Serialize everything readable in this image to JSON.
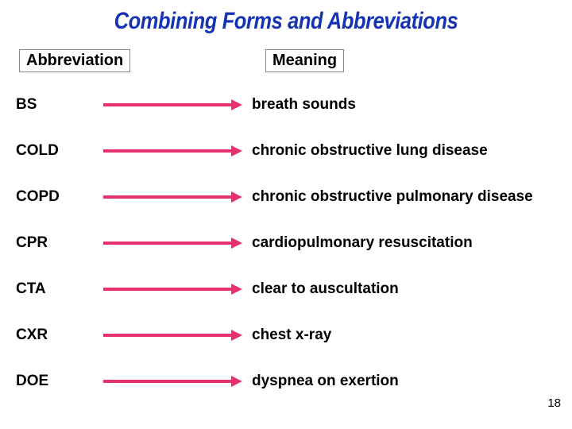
{
  "title": {
    "text": "Combining Forms and Abbreviations",
    "color": "#1533b3",
    "fontsize": 30
  },
  "headers": {
    "left": "Abbreviation",
    "right": "Meaning",
    "fontsize": 20,
    "color": "#000000"
  },
  "arrow": {
    "color": "#e6316e",
    "thickness": 4
  },
  "body_fontsize": 19,
  "rows": [
    {
      "abbrev": "BS",
      "meaning": "breath sounds"
    },
    {
      "abbrev": "COLD",
      "meaning": "chronic obstructive lung disease"
    },
    {
      "abbrev": "COPD",
      "meaning": "chronic obstructive pulmonary disease"
    },
    {
      "abbrev": "CPR",
      "meaning": "cardiopulmonary resuscitation"
    },
    {
      "abbrev": "CTA",
      "meaning": "clear to auscultation"
    },
    {
      "abbrev": "CXR",
      "meaning": "chest x-ray"
    },
    {
      "abbrev": "DOE",
      "meaning": "dyspnea on exertion"
    }
  ],
  "page_number": {
    "value": "18",
    "fontsize": 15,
    "color": "#000000"
  }
}
